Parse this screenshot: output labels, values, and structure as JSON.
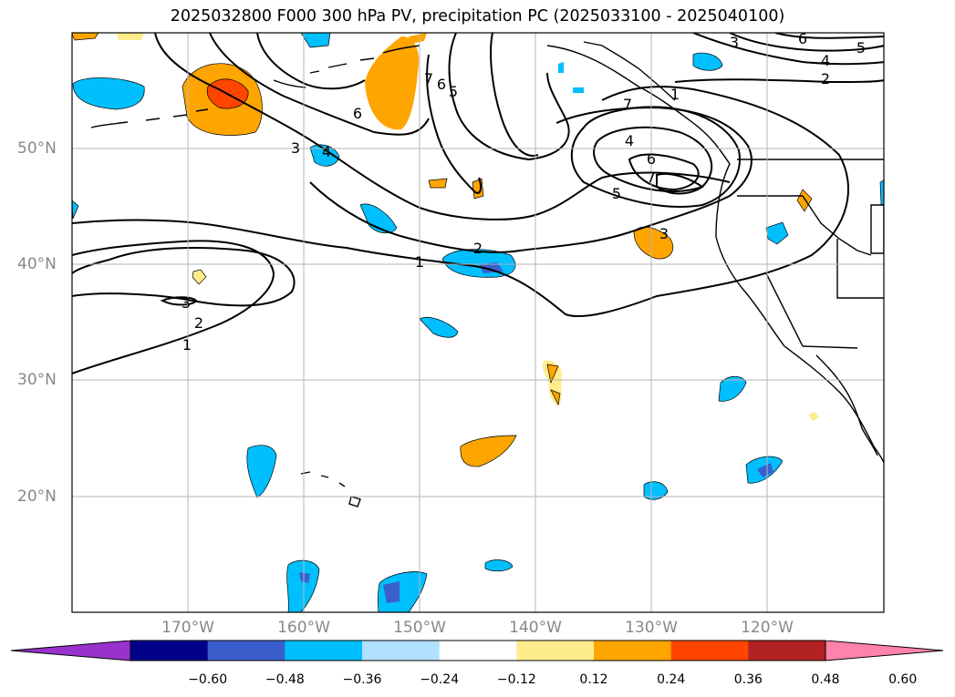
{
  "title": "2025032800 F000 300 hPa PV, precipitation PC (2025033100 - 2025040100)",
  "map": {
    "lon_range": [
      -180,
      -110
    ],
    "lat_range": [
      10,
      60
    ],
    "lon_labels": [
      "170°W",
      "160°W",
      "150°W",
      "140°W",
      "130°W",
      "120°W"
    ],
    "lat_labels": [
      "50°N",
      "40°N",
      "30°N",
      "20°N"
    ],
    "contour_labels": [
      "1",
      "1",
      "1",
      "2",
      "2",
      "2",
      "3",
      "3",
      "3",
      "3",
      "4",
      "4",
      "4",
      "5",
      "5",
      "5",
      "6",
      "6",
      "6",
      "6",
      "7",
      "7",
      "7"
    ]
  },
  "colorbar": {
    "ticks": [
      "−0.60",
      "−0.48",
      "−0.36",
      "−0.24",
      "−0.12",
      "0.12",
      "0.24",
      "0.36",
      "0.48",
      "0.60"
    ],
    "colors": [
      "#9932cc",
      "#00008b",
      "#3a5fcd",
      "#00bfff",
      "#b0e2ff",
      "#ffffff",
      "#ffec8b",
      "#ffa500",
      "#ff4500",
      "#b22222",
      "#ff82ab"
    ]
  }
}
